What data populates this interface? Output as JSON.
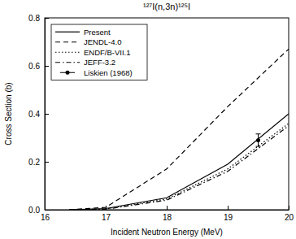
{
  "chart_data": {
    "type": "line",
    "title": "¹²⁷I(n,3n)¹²⁵I",
    "x_label": "Incident Neutron Energy (MeV)",
    "y_label": "Cross Section (b)",
    "xlim": [
      16,
      20
    ],
    "xticks": [
      16,
      17,
      18,
      19,
      20
    ],
    "ylim": [
      0,
      0.8
    ],
    "yticks": [
      {
        "value": 0,
        "label": "0.0"
      },
      {
        "value": 0.2,
        "label": "0.2"
      },
      {
        "value": 0.4,
        "label": "0.4"
      },
      {
        "value": 0.6,
        "label": "0.6"
      },
      {
        "value": 0.8,
        "label": "0.8"
      }
    ],
    "legend": "upper left",
    "series": [
      {
        "name": "Present",
        "color": "#000000",
        "line_style": "solid",
        "x": [
          16.4,
          17,
          18,
          19,
          20
        ],
        "values": [
          0,
          0.005,
          0.05,
          0.19,
          0.4
        ]
      },
      {
        "name": "JENDL-4.0",
        "color": "#000000",
        "line_style": "dashed",
        "x": [
          16.4,
          17,
          18,
          19,
          20
        ],
        "values": [
          0,
          0.01,
          0.17,
          0.43,
          0.67
        ]
      },
      {
        "name": "ENDF/B-VII.1",
        "color": "#000000",
        "line_style": "dotted",
        "x": [
          16.4,
          17,
          18,
          19,
          20
        ],
        "values": [
          0,
          0.003,
          0.045,
          0.17,
          0.36
        ]
      },
      {
        "name": "JEFF-3.2",
        "color": "#000000",
        "line_style": "dashdot",
        "x": [
          16.4,
          17,
          18,
          19,
          20
        ],
        "values": [
          0,
          0.002,
          0.04,
          0.16,
          0.35
        ]
      },
      {
        "name": "Liskien (1968)",
        "color": "#000000",
        "type": "scatter",
        "marker": "circle",
        "x": [
          19.5
        ],
        "values": [
          0.29
        ],
        "error": [
          0.026
        ]
      }
    ]
  }
}
